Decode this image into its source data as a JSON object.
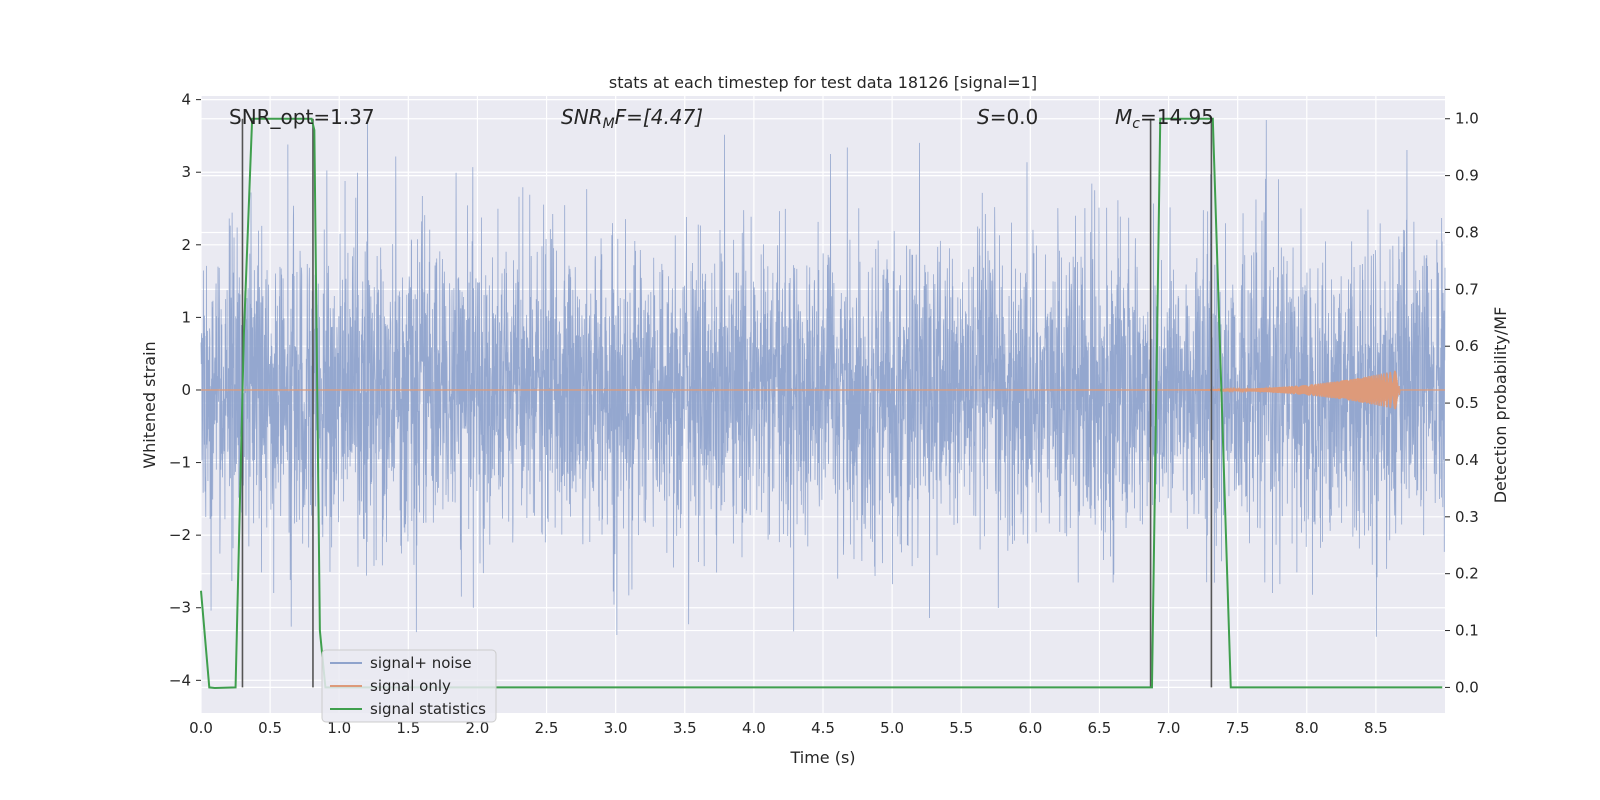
{
  "chart_data": {
    "type": "line",
    "title": "stats at each timestep for test data 18126 [signal=1]",
    "xlabel": "Time (s)",
    "ylabel": "Whitened strain",
    "y2label": "Detection probability/MF",
    "xlim": [
      0,
      9.0
    ],
    "ylim": [
      -4.45,
      4.05
    ],
    "y2lim": [
      -0.045,
      1.04
    ],
    "xticks": [
      "0.0",
      "0.5",
      "1.0",
      "1.5",
      "2.0",
      "2.5",
      "3.0",
      "3.5",
      "4.0",
      "4.5",
      "5.0",
      "5.5",
      "6.0",
      "6.5",
      "7.0",
      "7.5",
      "8.0",
      "8.5"
    ],
    "yticks": [
      "4",
      "3",
      "2",
      "1",
      "0",
      "−1",
      "−2",
      "−3",
      "−4"
    ],
    "y2ticks": [
      "1.0",
      "0.9",
      "0.8",
      "0.7",
      "0.6",
      "0.5",
      "0.4",
      "0.3",
      "0.2",
      "0.1",
      "0.0"
    ],
    "annotations": {
      "snr_opt": "SNR_opt=1.37",
      "snr_mf_main": "SNR",
      "snr_mf_sub": "M",
      "snr_mf_rest": "F=[4.47]",
      "s_main": "S",
      "s_rest": "=0.0",
      "mc_main": "M",
      "mc_sub": "c",
      "mc_rest": "=14.95"
    },
    "legend": {
      "placement": "lower-left",
      "entries": [
        "signal+ noise",
        "signal only",
        "signal statistics"
      ]
    },
    "grid": true,
    "series": [
      {
        "name": "signal+ noise",
        "axis": "left",
        "color": "#8fa3cc",
        "noise_std": 1.0,
        "range": [
          -3.65,
          3.72
        ],
        "duration": 9.0
      },
      {
        "name": "signal only",
        "axis": "left",
        "color": "#dd9a7a",
        "chirp_start": 6.8,
        "chirp_end": 8.67,
        "chirp_peak_amplitude": 0.28
      },
      {
        "name": "signal statistics",
        "axis": "right",
        "color": "#3f9f4d",
        "x": [
          0.0,
          0.06,
          0.1,
          0.25,
          0.31,
          0.37,
          0.8,
          0.82,
          0.86,
          0.9,
          6.88,
          6.94,
          7.32,
          7.45,
          7.5,
          8.98
        ],
        "y": [
          0.17,
          0.0,
          -0.001,
          0.0,
          0.62,
          1.0,
          1.0,
          0.98,
          0.1,
          0.0,
          0.0,
          1.0,
          1.0,
          0.0,
          0.0,
          0.0
        ]
      }
    ],
    "vlines": [
      0.3,
      0.81,
      6.87,
      7.31
    ],
    "vline_color": "#555555"
  }
}
